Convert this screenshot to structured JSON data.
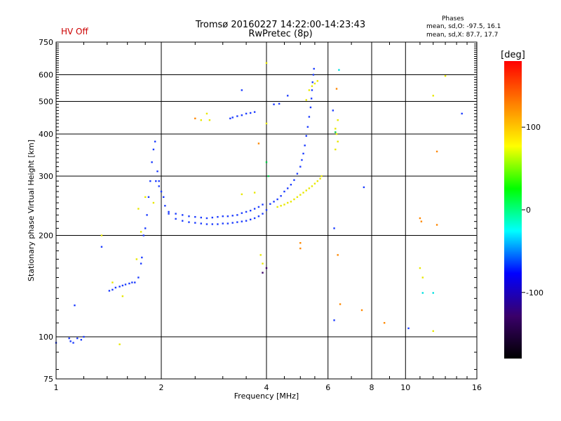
{
  "header": {
    "title_line1": "Tromsø 20160227 14:22:00-14:23:43",
    "title_line2": "RwPretec (8p)",
    "hv_status": "HV Off",
    "phases_title": "Phases",
    "phases_o": "mean, sd,O: -97.5, 16.1",
    "phases_x": "mean, sd,X:  87.7, 17.7",
    "hv_color": "#cc0000"
  },
  "chart_data": {
    "type": "scatter",
    "xlabel": "Frequency [MHz]",
    "ylabel": "Stationary phase Virtual Height [km]",
    "xscale": "log",
    "yscale": "log",
    "xlim": [
      1,
      16
    ],
    "ylim": [
      75,
      750
    ],
    "xticks": [
      1,
      2,
      4,
      6,
      8,
      10,
      16
    ],
    "yticks": [
      75,
      100,
      200,
      300,
      400,
      500,
      600,
      750
    ],
    "grid": true,
    "colorbar": {
      "label": "[deg]",
      "range": [
        -180,
        180
      ],
      "ticks": [
        100,
        0,
        -100
      ],
      "colors": [
        "#000000",
        "#3a006a",
        "#0000ff",
        "#00ffff",
        "#00ff00",
        "#ffff00",
        "#ff8000",
        "#ff0000"
      ]
    },
    "series": [
      {
        "color": "#1c3cff",
        "points": [
          [
            1.0,
            96
          ],
          [
            1.09,
            99
          ],
          [
            1.1,
            97
          ],
          [
            1.12,
            96
          ],
          [
            1.15,
            99
          ],
          [
            1.18,
            98
          ],
          [
            1.2,
            100
          ],
          [
            1.13,
            124
          ],
          [
            1.35,
            185
          ],
          [
            1.42,
            137
          ],
          [
            1.45,
            138
          ],
          [
            1.48,
            140
          ],
          [
            1.52,
            141
          ],
          [
            1.55,
            142
          ],
          [
            1.58,
            143
          ],
          [
            1.62,
            144
          ],
          [
            1.65,
            145
          ],
          [
            1.68,
            145
          ],
          [
            1.72,
            150
          ],
          [
            1.75,
            165
          ],
          [
            1.76,
            172
          ],
          [
            1.78,
            200
          ],
          [
            1.8,
            210
          ],
          [
            1.82,
            230
          ],
          [
            1.84,
            260
          ],
          [
            1.86,
            290
          ],
          [
            1.88,
            330
          ],
          [
            1.9,
            360
          ],
          [
            1.92,
            380
          ],
          [
            1.95,
            310
          ],
          [
            1.97,
            290
          ],
          [
            2.0,
            270
          ],
          [
            2.05,
            245
          ],
          [
            2.1,
            235
          ],
          [
            2.2,
            232
          ],
          [
            2.3,
            230
          ],
          [
            2.4,
            228
          ],
          [
            2.5,
            227
          ],
          [
            2.6,
            226
          ],
          [
            2.7,
            225
          ],
          [
            2.8,
            226
          ],
          [
            2.9,
            227
          ],
          [
            3.0,
            228
          ],
          [
            3.1,
            228
          ],
          [
            3.2,
            229
          ],
          [
            3.3,
            230
          ],
          [
            3.4,
            233
          ],
          [
            3.5,
            235
          ],
          [
            3.6,
            237
          ],
          [
            3.7,
            240
          ],
          [
            3.8,
            243
          ],
          [
            3.9,
            247
          ],
          [
            1.93,
            290
          ],
          [
            1.97,
            280
          ],
          [
            2.03,
            260
          ],
          [
            2.1,
            232
          ],
          [
            2.2,
            224
          ],
          [
            2.3,
            221
          ],
          [
            2.4,
            219
          ],
          [
            2.5,
            218
          ],
          [
            2.6,
            217
          ],
          [
            2.7,
            216
          ],
          [
            2.8,
            216
          ],
          [
            2.9,
            216
          ],
          [
            3.0,
            217
          ],
          [
            3.1,
            217
          ],
          [
            3.2,
            218
          ],
          [
            3.3,
            219
          ],
          [
            3.4,
            220
          ],
          [
            3.5,
            221
          ],
          [
            3.6,
            223
          ],
          [
            3.7,
            225
          ],
          [
            3.8,
            228
          ],
          [
            3.9,
            232
          ],
          [
            4.0,
            238
          ],
          [
            4.1,
            248
          ],
          [
            4.2,
            252
          ],
          [
            4.3,
            256
          ],
          [
            4.4,
            262
          ],
          [
            4.5,
            270
          ],
          [
            4.6,
            276
          ],
          [
            4.7,
            283
          ],
          [
            4.8,
            292
          ],
          [
            4.9,
            305
          ],
          [
            5.0,
            320
          ],
          [
            5.05,
            335
          ],
          [
            5.1,
            350
          ],
          [
            5.15,
            370
          ],
          [
            5.2,
            395
          ],
          [
            5.25,
            420
          ],
          [
            5.3,
            450
          ],
          [
            5.35,
            480
          ],
          [
            5.38,
            510
          ],
          [
            5.4,
            540
          ],
          [
            5.42,
            570
          ],
          [
            5.45,
            600
          ],
          [
            5.47,
            625
          ],
          [
            3.15,
            445
          ],
          [
            3.2,
            448
          ],
          [
            3.3,
            452
          ],
          [
            3.4,
            455
          ],
          [
            3.5,
            460
          ],
          [
            3.6,
            462
          ],
          [
            3.7,
            465
          ],
          [
            4.2,
            490
          ],
          [
            4.35,
            492
          ],
          [
            4.6,
            520
          ],
          [
            3.4,
            540
          ],
          [
            6.2,
            470
          ],
          [
            6.25,
            210
          ],
          [
            6.25,
            112
          ],
          [
            10.2,
            106
          ],
          [
            14.5,
            460
          ],
          [
            7.6,
            278
          ]
        ]
      },
      {
        "color": "#e8e800",
        "points": [
          [
            4.3,
            243
          ],
          [
            4.4,
            245
          ],
          [
            4.5,
            247
          ],
          [
            4.6,
            250
          ],
          [
            4.7,
            252
          ],
          [
            4.8,
            256
          ],
          [
            4.9,
            260
          ],
          [
            5.0,
            264
          ],
          [
            5.1,
            268
          ],
          [
            5.2,
            272
          ],
          [
            5.3,
            276
          ],
          [
            5.4,
            280
          ],
          [
            5.5,
            285
          ],
          [
            5.6,
            290
          ],
          [
            5.7,
            295
          ],
          [
            5.75,
            300
          ],
          [
            5.3,
            540
          ],
          [
            5.4,
            555
          ],
          [
            5.5,
            565
          ],
          [
            5.6,
            575
          ],
          [
            5.2,
            505
          ],
          [
            4.0,
            650
          ],
          [
            4.0,
            430
          ],
          [
            3.4,
            265
          ],
          [
            3.7,
            268
          ],
          [
            1.45,
            145
          ],
          [
            1.55,
            132
          ],
          [
            1.7,
            170
          ],
          [
            1.75,
            205
          ],
          [
            1.72,
            240
          ],
          [
            1.8,
            260
          ],
          [
            1.9,
            250
          ],
          [
            2.6,
            440
          ],
          [
            2.7,
            460
          ],
          [
            2.75,
            440
          ],
          [
            6.3,
            415
          ],
          [
            6.4,
            440
          ],
          [
            6.35,
            400
          ],
          [
            6.4,
            380
          ],
          [
            6.3,
            360
          ],
          [
            12.0,
            520
          ],
          [
            13.0,
            595
          ],
          [
            11.0,
            160
          ],
          [
            11.2,
            150
          ],
          [
            12.0,
            104
          ],
          [
            1.52,
            95
          ],
          [
            3.85,
            175
          ],
          [
            3.9,
            165
          ],
          [
            1.35,
            200
          ]
        ]
      },
      {
        "color": "#ff8800",
        "points": [
          [
            2.5,
            445
          ],
          [
            3.8,
            375
          ],
          [
            6.35,
            545
          ],
          [
            6.4,
            175
          ],
          [
            6.5,
            125
          ],
          [
            8.7,
            110
          ],
          [
            12.3,
            215
          ],
          [
            11.0,
            225
          ],
          [
            11.1,
            220
          ],
          [
            12.3,
            355
          ],
          [
            5.0,
            190
          ],
          [
            5.0,
            183
          ],
          [
            7.5,
            120
          ]
        ]
      },
      {
        "color": "#00cc44",
        "points": [
          [
            4.0,
            330
          ],
          [
            4.05,
            300
          ],
          [
            6.3,
            405
          ]
        ]
      },
      {
        "color": "#00e0e0",
        "points": [
          [
            6.45,
            620
          ],
          [
            11.2,
            135
          ],
          [
            12.0,
            135
          ]
        ]
      },
      {
        "color": "#3a006a",
        "points": [
          [
            3.9,
            155
          ],
          [
            4.0,
            160
          ]
        ]
      }
    ]
  }
}
